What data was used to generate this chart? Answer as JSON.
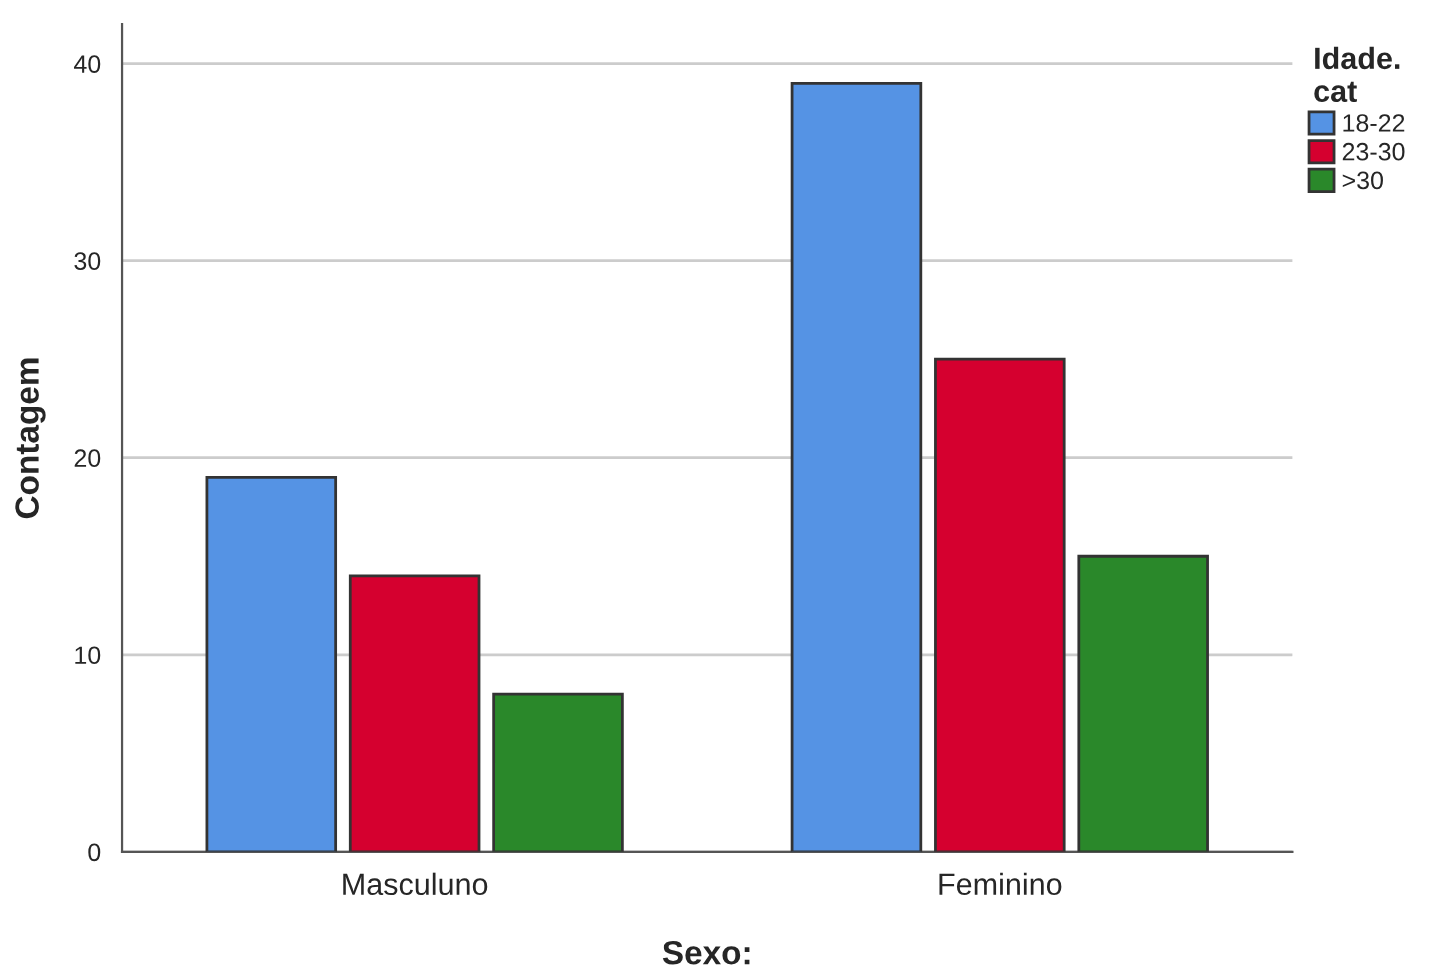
{
  "chart_data": {
    "type": "bar",
    "xlabel": "Sexo:",
    "ylabel": "Contagem",
    "legend_title": "Idade.\ncat",
    "categories": [
      "Masculuno",
      "Feminino"
    ],
    "series": [
      {
        "name": "18-22",
        "color": "#5593e4",
        "values": [
          19,
          39
        ]
      },
      {
        "name": "23-30",
        "color": "#d5002f",
        "values": [
          14,
          25
        ]
      },
      {
        "name": ">30",
        "color": "#2a882a",
        "values": [
          8,
          15
        ]
      }
    ],
    "ylim": [
      0,
      42
    ],
    "yticks": [
      0,
      10,
      20,
      30,
      40
    ],
    "grid": "y",
    "legend": "top right"
  }
}
